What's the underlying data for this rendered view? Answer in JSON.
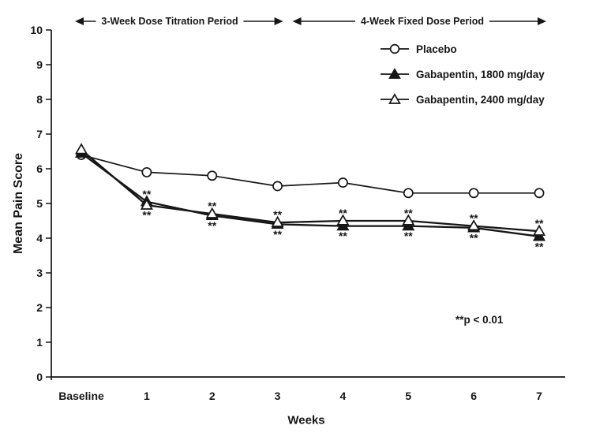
{
  "figure": {
    "background": "#ffffff",
    "ink": "#161616"
  },
  "chart_data": {
    "type": "line",
    "title": "",
    "xlabel": "Weeks",
    "ylabel": "Mean Pain Score",
    "categories": [
      "Baseline",
      "1",
      "2",
      "3",
      "4",
      "5",
      "6",
      "7"
    ],
    "ylim": [
      0,
      10
    ],
    "ytick_step": 1,
    "grid": false,
    "legend_position": "top-right-inside",
    "series": [
      {
        "name": "Placebo",
        "marker": "open-circle",
        "values": [
          6.4,
          5.9,
          5.8,
          5.5,
          5.6,
          5.3,
          5.3,
          5.3
        ]
      },
      {
        "name": "Gabapentin, 1800 mg/day",
        "marker": "filled-triangle",
        "values": [
          6.45,
          5.05,
          4.65,
          4.4,
          4.35,
          4.35,
          4.3,
          4.05
        ]
      },
      {
        "name": "Gabapentin, 2400 mg/day",
        "marker": "open-triangle",
        "values": [
          6.55,
          4.95,
          4.7,
          4.45,
          4.5,
          4.5,
          4.35,
          4.2
        ]
      }
    ],
    "significant_week_indices": [
      1,
      2,
      3,
      4,
      5,
      6,
      7
    ],
    "significance_symbol": "**",
    "significance_note": "**p < 0.01",
    "period_annotations": [
      {
        "label": "3-Week Dose Titration Period",
        "from_index": 0,
        "to_index": 3
      },
      {
        "label": "4-Week Fixed Dose Period",
        "from_index": 3,
        "to_index": 7
      }
    ]
  }
}
